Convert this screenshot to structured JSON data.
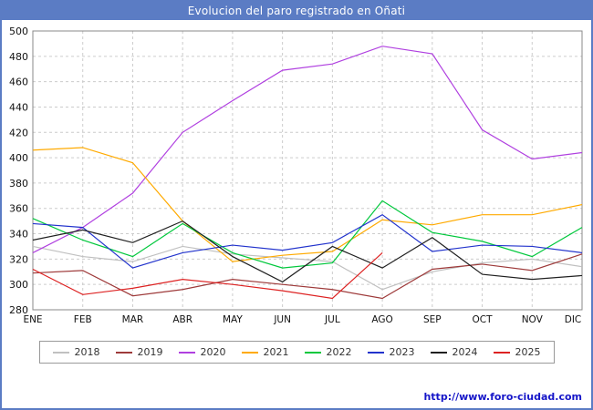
{
  "window": {
    "title": "Evolucion del paro registrado en Oñati"
  },
  "footer": {
    "url": "http://www.foro-ciudad.com"
  },
  "colors": {
    "frame": "#5b7cc4",
    "title_bg": "#5b7cc4",
    "title_text": "#ffffff",
    "grid": "#cccccc",
    "axis": "#888888",
    "url_text": "#1515c8"
  },
  "chart_data": {
    "type": "line",
    "title": "Evolucion del paro registrado en Oñati",
    "categories": [
      "ENE",
      "FEB",
      "MAR",
      "ABR",
      "MAY",
      "JUN",
      "JUL",
      "AGO",
      "SEP",
      "OCT",
      "NOV",
      "DIC"
    ],
    "ylabel": "",
    "xlabel": "",
    "ylim": [
      280,
      500
    ],
    "ytick_step": 20,
    "grid": true,
    "legend_position": "bottom",
    "series": [
      {
        "name": "2018",
        "color": "#c0c0c0",
        "values": [
          330,
          322,
          318,
          330,
          324,
          321,
          318,
          296,
          310,
          317,
          320,
          314
        ]
      },
      {
        "name": "2019",
        "color": "#9e3a3a",
        "values": [
          309,
          311,
          291,
          296,
          304,
          300,
          296,
          289,
          312,
          316,
          311,
          324
        ]
      },
      {
        "name": "2020",
        "color": "#b040e0",
        "values": [
          325,
          345,
          372,
          420,
          445,
          469,
          474,
          488,
          482,
          422,
          399,
          404
        ]
      },
      {
        "name": "2021",
        "color": "#ffaa00",
        "values": [
          406,
          408,
          396,
          350,
          318,
          323,
          326,
          351,
          347,
          355,
          355,
          363
        ]
      },
      {
        "name": "2022",
        "color": "#00c83c",
        "values": [
          352,
          335,
          322,
          348,
          325,
          313,
          317,
          366,
          341,
          334,
          322,
          345
        ]
      },
      {
        "name": "2023",
        "color": "#2233cc",
        "values": [
          348,
          345,
          313,
          325,
          331,
          327,
          333,
          355,
          326,
          331,
          330,
          325
        ]
      },
      {
        "name": "2024",
        "color": "#202020",
        "values": [
          335,
          343,
          333,
          350,
          322,
          302,
          330,
          313,
          337,
          308,
          304,
          307
        ]
      },
      {
        "name": "2025",
        "color": "#dd2222",
        "values": [
          312,
          292,
          297,
          304,
          300,
          295,
          289,
          325,
          null,
          null,
          null,
          null
        ]
      }
    ]
  }
}
